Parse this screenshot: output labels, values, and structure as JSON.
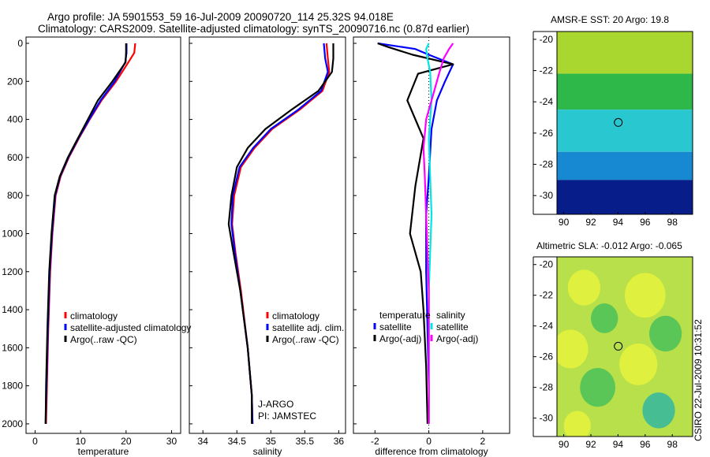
{
  "header": {
    "line1": "Argo profile: JA 5901553_59 16-Jul-2009 20090720_114 25.32S 94.018E",
    "line2": "Climatology: CARS2009. Satellite-adjusted climatology: synTS_20090716.nc (0.87d earlier)"
  },
  "footer_note": "CSIRO 22-Jul-2009 10:31:52",
  "colors": {
    "red": "#ff0000",
    "blue": "#0000ff",
    "black": "#000000",
    "cyan": "#00e5e5",
    "magenta": "#ff00ff"
  },
  "chart_data": [
    {
      "type": "line",
      "id": "temperature",
      "title": "",
      "xlabel": "temperature",
      "ylabel": "",
      "xlim": [
        -2,
        32
      ],
      "ylim": [
        2050,
        0
      ],
      "xticks": [
        "0",
        "10",
        "20",
        "30"
      ],
      "yticks": [
        "0",
        "200",
        "400",
        "600",
        "800",
        "1000",
        "1200",
        "1400",
        "1600",
        "1800",
        "2000"
      ],
      "legend": [
        "climatology",
        "satellite-adjusted climatology",
        "Argo(..raw -QC)"
      ],
      "legend_position": "lower-right",
      "series": [
        {
          "name": "climatology",
          "color": "red",
          "x": [
            22.0,
            21.8,
            20.5,
            17.8,
            14.6,
            12.0,
            9.6,
            7.4,
            5.6,
            4.5,
            3.8,
            3.3,
            2.9,
            2.6,
            2.4
          ],
          "y": [
            0,
            50,
            100,
            200,
            300,
            400,
            500,
            600,
            700,
            800,
            1000,
            1200,
            1500,
            1800,
            2000
          ]
        },
        {
          "name": "satellite-adjusted climatology",
          "color": "blue",
          "x": [
            20.1,
            20.1,
            19.8,
            17.5,
            14.4,
            11.9,
            9.5,
            7.3,
            5.5,
            4.4,
            3.7,
            3.2,
            2.8,
            2.5,
            2.3
          ],
          "y": [
            0,
            50,
            100,
            200,
            300,
            400,
            500,
            600,
            700,
            800,
            1000,
            1200,
            1500,
            1800,
            2000
          ]
        },
        {
          "name": "Argo(..raw -QC)",
          "color": "black",
          "x": [
            20.0,
            20.0,
            19.9,
            17.0,
            13.8,
            11.6,
            9.4,
            7.2,
            5.4,
            4.3,
            3.6,
            3.1,
            2.7,
            2.4,
            2.3
          ],
          "y": [
            0,
            50,
            100,
            200,
            300,
            400,
            500,
            600,
            700,
            800,
            1000,
            1200,
            1500,
            1800,
            2000
          ]
        }
      ]
    },
    {
      "type": "line",
      "id": "salinity",
      "title": "",
      "xlabel": "salinity",
      "xlim": [
        33.8,
        36.1
      ],
      "ylim": [
        2050,
        0
      ],
      "xticks": [
        "34",
        "34.5",
        "35",
        "35.5",
        "36"
      ],
      "legend": [
        "climatology",
        "satellite adj. clim.",
        "Argo(..raw -QC)"
      ],
      "legend_position": "lower-right",
      "annotations": [
        "J-ARGO",
        "PI: JAMSTEC"
      ],
      "series": [
        {
          "name": "climatology",
          "color": "red",
          "x": [
            35.82,
            35.84,
            35.86,
            35.76,
            35.42,
            35.02,
            34.76,
            34.56,
            34.46,
            34.43,
            34.48,
            34.56,
            34.66,
            34.72,
            34.73
          ],
          "y": [
            0,
            80,
            150,
            250,
            350,
            450,
            550,
            650,
            800,
            950,
            1100,
            1300,
            1600,
            1850,
            2000
          ]
        },
        {
          "name": "satellite adj. clim.",
          "color": "blue",
          "x": [
            35.78,
            35.8,
            35.84,
            35.74,
            35.4,
            35.0,
            34.74,
            34.54,
            34.44,
            34.42,
            34.47,
            34.55,
            34.66,
            34.72,
            34.73
          ],
          "y": [
            0,
            80,
            150,
            250,
            350,
            450,
            550,
            650,
            800,
            950,
            1100,
            1300,
            1600,
            1850,
            2000
          ]
        },
        {
          "name": "Argo(..raw -QC)",
          "color": "black",
          "x": [
            35.92,
            35.92,
            35.9,
            35.7,
            35.3,
            34.92,
            34.66,
            34.5,
            34.42,
            34.38,
            34.45,
            34.55,
            34.66,
            34.72,
            34.72
          ],
          "y": [
            0,
            80,
            150,
            250,
            350,
            450,
            550,
            650,
            800,
            950,
            1100,
            1300,
            1600,
            1850,
            2000
          ]
        }
      ]
    },
    {
      "type": "line",
      "id": "difference",
      "title": "",
      "xlabel": "difference from climatology",
      "xlim": [
        -2.8,
        3.0
      ],
      "ylim": [
        2050,
        0
      ],
      "xticks": [
        "-2",
        "0",
        "2"
      ],
      "legend_groups": [
        {
          "title": "temperature",
          "items": [
            "satellite",
            "Argo(-adj)"
          ]
        },
        {
          "title": "salinity",
          "items": [
            "satellite",
            "Argo(-adj)"
          ]
        }
      ],
      "series": [
        {
          "name": "temperature satellite",
          "color": "blue",
          "x": [
            -1.9,
            -0.5,
            0.0,
            0.9,
            0.6,
            0.3,
            0.1,
            0.0,
            -0.1,
            -0.1,
            -0.05,
            0.0,
            0.0
          ],
          "y": [
            0,
            30,
            60,
            110,
            200,
            300,
            450,
            700,
            900,
            1200,
            1500,
            1800,
            2000
          ]
        },
        {
          "name": "temperature Argo(-adj)",
          "color": "black",
          "x": [
            -1.9,
            -1.5,
            -0.6,
            0.9,
            -0.4,
            -0.8,
            -0.2,
            -0.5,
            -0.7,
            -0.3,
            -0.2,
            -0.1,
            -0.05
          ],
          "y": [
            0,
            20,
            60,
            110,
            160,
            300,
            500,
            750,
            1000,
            1200,
            1400,
            1700,
            2000
          ]
        },
        {
          "name": "salinity satellite",
          "color": "cyan",
          "x": [
            0.0,
            -0.1,
            -0.05,
            0.05,
            0.1,
            0.0,
            0.05,
            0.1,
            0.05,
            0.0,
            0.0,
            0.0,
            0.0
          ],
          "y": [
            0,
            30,
            80,
            150,
            300,
            500,
            700,
            900,
            1100,
            1300,
            1500,
            1800,
            2000
          ]
        },
        {
          "name": "salinity Argo(-adj)",
          "color": "magenta",
          "x": [
            0.9,
            0.75,
            0.55,
            0.4,
            0.2,
            -0.1,
            -0.2,
            -0.15,
            -0.1,
            -0.05,
            0.0,
            0.0,
            0.0
          ],
          "y": [
            0,
            30,
            80,
            150,
            250,
            400,
            550,
            700,
            900,
            1100,
            1300,
            1600,
            2000
          ]
        }
      ]
    },
    {
      "type": "heatmap",
      "id": "sst-map",
      "title": "AMSR-E SST: 20 Argo: 19.8",
      "xlim": [
        89.5,
        99.5
      ],
      "ylim": [
        -31.2,
        -19.5
      ],
      "xticks": [
        "90",
        "92",
        "94",
        "96",
        "98"
      ],
      "yticks": [
        "-20",
        "-22",
        "-24",
        "-26",
        "-28",
        "-30"
      ],
      "marker": {
        "lon": 94.018,
        "lat": -25.32
      },
      "bands": [
        {
          "lat_top": -19.5,
          "lat_bottom": -22.2,
          "color": "#a9d62f"
        },
        {
          "lat_top": -22.2,
          "lat_bottom": -24.5,
          "color": "#2fb84a"
        },
        {
          "lat_top": -24.5,
          "lat_bottom": -27.2,
          "color": "#29c7cf"
        },
        {
          "lat_top": -27.2,
          "lat_bottom": -29.0,
          "color": "#1789d3"
        },
        {
          "lat_top": -29.0,
          "lat_bottom": -31.2,
          "color": "#061d8a"
        }
      ]
    },
    {
      "type": "heatmap",
      "id": "sla-map",
      "title": "Altimetric SLA: -0.012 Argo: -0.065",
      "xlim": [
        89.5,
        99.5
      ],
      "ylim": [
        -31.2,
        -19.5
      ],
      "xticks": [
        "90",
        "92",
        "94",
        "96",
        "98"
      ],
      "yticks": [
        "-20",
        "-22",
        "-24",
        "-26",
        "-28",
        "-30"
      ],
      "marker": {
        "lon": 94.018,
        "lat": -25.32
      },
      "base_color": "#b8e04a",
      "blobs": [
        {
          "lon": 91.5,
          "lat": -21.5,
          "r": 1.2,
          "color": "#e6f23c"
        },
        {
          "lon": 96.0,
          "lat": -22.0,
          "r": 1.5,
          "color": "#e6f23c"
        },
        {
          "lon": 93.0,
          "lat": -23.5,
          "r": 1.0,
          "color": "#49c15a"
        },
        {
          "lon": 97.5,
          "lat": -24.5,
          "r": 1.2,
          "color": "#49c15a"
        },
        {
          "lon": 90.5,
          "lat": -25.5,
          "r": 1.3,
          "color": "#e6f23c"
        },
        {
          "lon": 95.5,
          "lat": -26.5,
          "r": 1.4,
          "color": "#e6f23c"
        },
        {
          "lon": 92.5,
          "lat": -28.0,
          "r": 1.3,
          "color": "#49c15a"
        },
        {
          "lon": 97.0,
          "lat": -29.5,
          "r": 1.2,
          "color": "#31b6a0"
        },
        {
          "lon": 91.0,
          "lat": -30.5,
          "r": 1.0,
          "color": "#e6f23c"
        }
      ]
    }
  ]
}
